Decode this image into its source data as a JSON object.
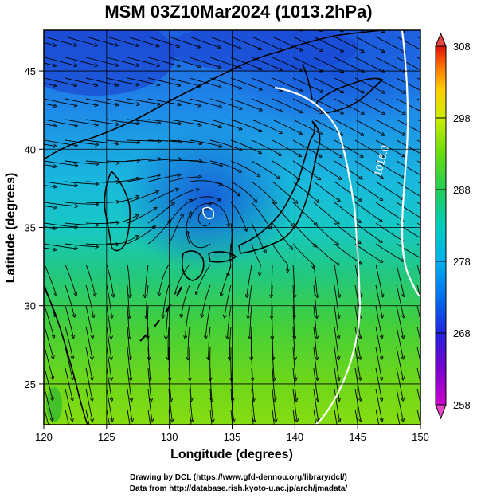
{
  "title": "MSM 03Z10Mar2024 (1013.2hPa)",
  "xaxis": {
    "label": "Longitude (degrees)",
    "ticks": [
      "120",
      "125",
      "130",
      "135",
      "140",
      "145",
      "150"
    ],
    "range": [
      120,
      150
    ]
  },
  "yaxis": {
    "label": "Latitude  (degrees)",
    "ticks": [
      "25",
      "30",
      "35",
      "40",
      "45"
    ],
    "range": [
      22.4,
      47.6
    ]
  },
  "colorbar": {
    "ticks": [
      "258",
      "268",
      "278",
      "288",
      "298",
      "308"
    ],
    "range": [
      258,
      308
    ],
    "colors": [
      "#cc00cc",
      "#8800cc",
      "#2222dd",
      "#0066ee",
      "#00aaee",
      "#00ccbb",
      "#22cc66",
      "#55dd22",
      "#aaee00",
      "#eeee00",
      "#ffaa00",
      "#ff5500",
      "#dd1100"
    ]
  },
  "contour_label": "1016.0",
  "map_colors": {
    "cold": "#1f5fe0",
    "mid": "#19c0cc",
    "warm": "#5ed21c",
    "land_outline": "#000000",
    "contour": "#ffffff",
    "streamline": "#000000"
  },
  "credits": {
    "line1": "Drawing by DCL (https://www.gfd-dennou.org/library/dcl/)",
    "line2": "Data from http://database.rish.kyoto-u.ac.jp/arch/jmadata/"
  }
}
